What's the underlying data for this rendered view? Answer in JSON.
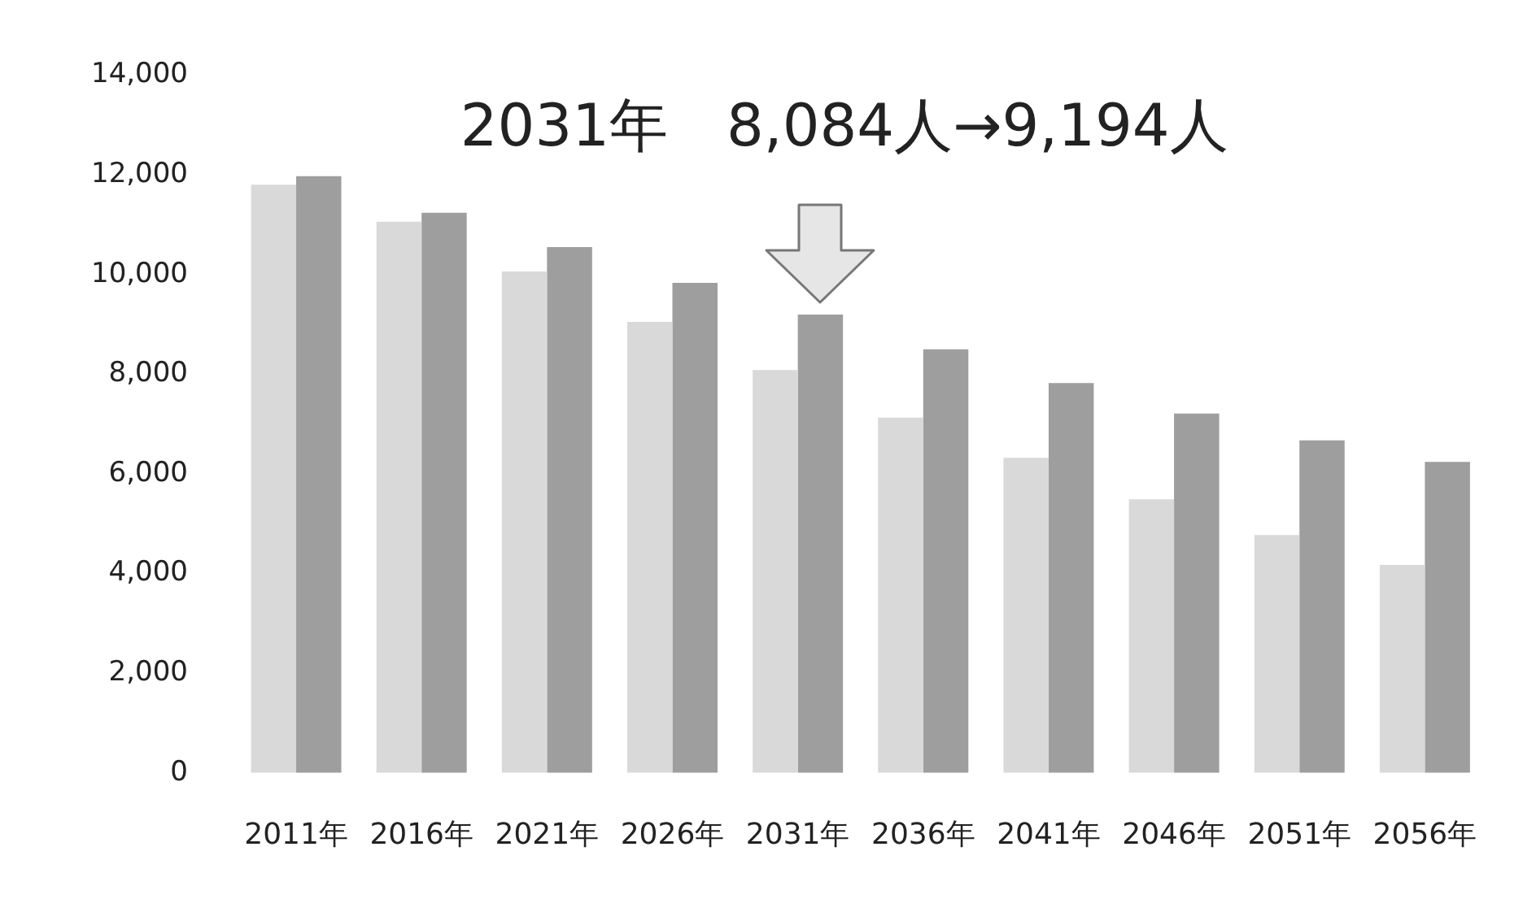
{
  "chart_data": {
    "type": "bar",
    "categories": [
      "2011年",
      "2016年",
      "2021年",
      "2026年",
      "2031年",
      "2036年",
      "2041年",
      "2046年",
      "2051年",
      "2056年"
    ],
    "series": [
      {
        "color": "#d9d9d9",
        "values": [
          11800,
          11060,
          10060,
          9050,
          8084,
          7130,
          6320,
          5490,
          4770,
          4170
        ]
      },
      {
        "color": "#9e9e9e",
        "values": [
          11970,
          11240,
          10550,
          9830,
          9194,
          8500,
          7820,
          7210,
          6670,
          6240
        ]
      }
    ],
    "ylim": [
      0,
      14000
    ],
    "yticks": [
      {
        "value": 0,
        "label": "0"
      },
      {
        "value": 2000,
        "label": "2,000"
      },
      {
        "value": 4000,
        "label": "4,000"
      },
      {
        "value": 6000,
        "label": "6,000"
      },
      {
        "value": 8000,
        "label": "8,000"
      },
      {
        "value": 10000,
        "label": "10,000"
      },
      {
        "value": 12000,
        "label": "12,000"
      },
      {
        "value": 14000,
        "label": "14,000"
      }
    ],
    "grid": false,
    "legend": false,
    "annotations": [
      {
        "text": "2031年　8,084人→9,194人",
        "x": "2031年",
        "y": 9194
      }
    ]
  }
}
